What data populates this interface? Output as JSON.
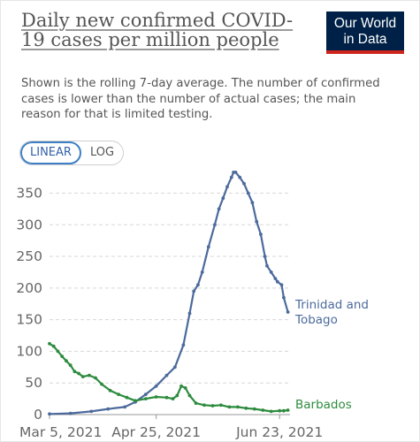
{
  "header": {
    "title": "Daily new confirmed COVID-19 cases per million people",
    "subtitle": "Shown is the rolling 7-day average. The number of confirmed cases is lower than the number of actual cases; the main reason for that is limited testing.",
    "logo_line1": "Our World",
    "logo_line2": "in Data"
  },
  "controls": {
    "linear_label": "LINEAR",
    "log_label": "LOG",
    "selected": "linear"
  },
  "colors": {
    "trinidad": "#4c6a9c",
    "barbados": "#2e8b3e",
    "grid": "#d7d7d7",
    "accent": "#3c7fc4"
  },
  "chart_data": {
    "type": "line",
    "title": "Daily new confirmed COVID-19 cases per million people",
    "ylim": [
      0,
      380
    ],
    "yticks": [
      0,
      50,
      100,
      150,
      200,
      250,
      300,
      350
    ],
    "xlim": [
      "2021-03-05",
      "2021-06-28"
    ],
    "xticks": [
      {
        "date": "2021-03-05",
        "label": "Mar 5, 2021"
      },
      {
        "date": "2021-04-25",
        "label": "Apr 25, 2021"
      },
      {
        "date": "2021-06-23",
        "label": "Jun 23, 2021"
      }
    ],
    "grid": true,
    "series": [
      {
        "name": "Trinidad and Tobago",
        "label_lines": [
          "Trinidad and",
          "Tobago"
        ],
        "points": [
          [
            "2021-03-05",
            1
          ],
          [
            "2021-03-15",
            2
          ],
          [
            "2021-03-25",
            5
          ],
          [
            "2021-04-02",
            9
          ],
          [
            "2021-04-10",
            12
          ],
          [
            "2021-04-15",
            20
          ],
          [
            "2021-04-20",
            32
          ],
          [
            "2021-04-25",
            45
          ],
          [
            "2021-04-30",
            62
          ],
          [
            "2021-05-04",
            75
          ],
          [
            "2021-05-08",
            110
          ],
          [
            "2021-05-11",
            160
          ],
          [
            "2021-05-13",
            195
          ],
          [
            "2021-05-15",
            205
          ],
          [
            "2021-05-17",
            225
          ],
          [
            "2021-05-20",
            265
          ],
          [
            "2021-05-23",
            300
          ],
          [
            "2021-05-25",
            325
          ],
          [
            "2021-05-27",
            342
          ],
          [
            "2021-05-29",
            360
          ],
          [
            "2021-05-31",
            375
          ],
          [
            "2021-06-01",
            383
          ],
          [
            "2021-06-02",
            383
          ],
          [
            "2021-06-04",
            375
          ],
          [
            "2021-06-06",
            365
          ],
          [
            "2021-06-08",
            350
          ],
          [
            "2021-06-10",
            335
          ],
          [
            "2021-06-12",
            305
          ],
          [
            "2021-06-14",
            285
          ],
          [
            "2021-06-16",
            250
          ],
          [
            "2021-06-17",
            235
          ],
          [
            "2021-06-19",
            225
          ],
          [
            "2021-06-21",
            215
          ],
          [
            "2021-06-22",
            210
          ],
          [
            "2021-06-24",
            205
          ],
          [
            "2021-06-25",
            185
          ],
          [
            "2021-06-27",
            162
          ]
        ]
      },
      {
        "name": "Barbados",
        "label_lines": [
          "Barbados"
        ],
        "points": [
          [
            "2021-03-05",
            112
          ],
          [
            "2021-03-07",
            108
          ],
          [
            "2021-03-09",
            100
          ],
          [
            "2021-03-11",
            92
          ],
          [
            "2021-03-13",
            85
          ],
          [
            "2021-03-15",
            78
          ],
          [
            "2021-03-17",
            68
          ],
          [
            "2021-03-19",
            65
          ],
          [
            "2021-03-21",
            60
          ],
          [
            "2021-03-24",
            62
          ],
          [
            "2021-03-27",
            58
          ],
          [
            "2021-03-30",
            48
          ],
          [
            "2021-04-03",
            38
          ],
          [
            "2021-04-07",
            32
          ],
          [
            "2021-04-11",
            27
          ],
          [
            "2021-04-15",
            22
          ],
          [
            "2021-04-20",
            25
          ],
          [
            "2021-04-25",
            28
          ],
          [
            "2021-04-30",
            27
          ],
          [
            "2021-05-03",
            25
          ],
          [
            "2021-05-05",
            30
          ],
          [
            "2021-05-07",
            45
          ],
          [
            "2021-05-09",
            42
          ],
          [
            "2021-05-11",
            30
          ],
          [
            "2021-05-14",
            18
          ],
          [
            "2021-05-18",
            15
          ],
          [
            "2021-05-22",
            14
          ],
          [
            "2021-05-26",
            15
          ],
          [
            "2021-05-30",
            12
          ],
          [
            "2021-06-03",
            12
          ],
          [
            "2021-06-07",
            10
          ],
          [
            "2021-06-11",
            9
          ],
          [
            "2021-06-15",
            7
          ],
          [
            "2021-06-19",
            5
          ],
          [
            "2021-06-23",
            6
          ],
          [
            "2021-06-25",
            6
          ],
          [
            "2021-06-27",
            7
          ]
        ]
      }
    ]
  }
}
